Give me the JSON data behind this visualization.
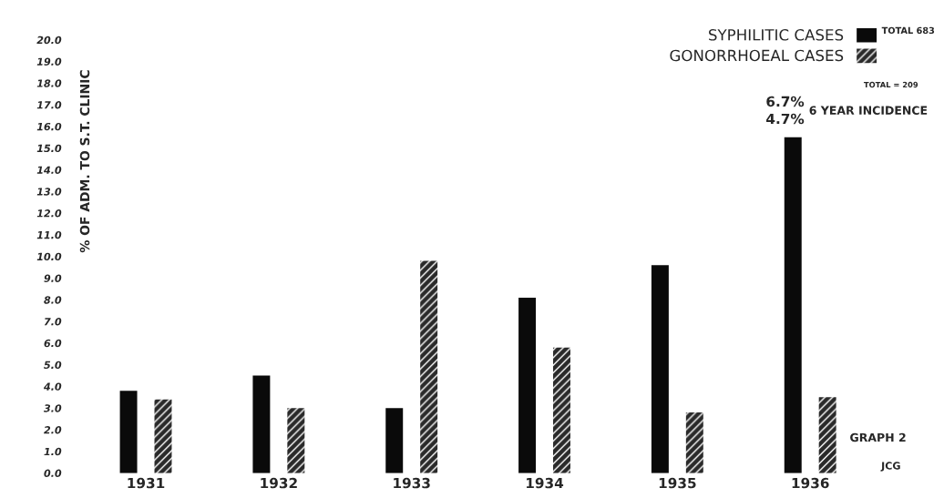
{
  "chart_data": {
    "type": "bar",
    "ylabel": "% OF ADM. TO S.T. CLINIC",
    "categories": [
      "1931",
      "1932",
      "1933",
      "1934",
      "1935",
      "1936"
    ],
    "series": [
      {
        "name": "SYPHILITIC CASES",
        "color": "#0a0a0a",
        "values": [
          3.8,
          4.5,
          3.0,
          8.1,
          9.6,
          15.5
        ]
      },
      {
        "name": "GONORRHOEAL CASES",
        "color": "#2a2a2a",
        "values": [
          3.4,
          3.0,
          9.8,
          5.8,
          2.8,
          3.5
        ]
      }
    ],
    "ylim": [
      0,
      20
    ],
    "yticks": [
      {
        "value": 0,
        "label": "0.0"
      },
      {
        "value": 1,
        "label": "1.0"
      },
      {
        "value": 2,
        "label": "2.0"
      },
      {
        "value": 3,
        "label": "3.0"
      },
      {
        "value": 4,
        "label": "4.0"
      },
      {
        "value": 5,
        "label": "5.0"
      },
      {
        "value": 6,
        "label": "6.0"
      },
      {
        "value": 7,
        "label": "7.0"
      },
      {
        "value": 8,
        "label": "8.0"
      },
      {
        "value": 9,
        "label": "9.0"
      },
      {
        "value": 10,
        "label": "10.0"
      },
      {
        "value": 11,
        "label": "11.0"
      },
      {
        "value": 12,
        "label": "12.0"
      },
      {
        "value": 13,
        "label": "13.0"
      },
      {
        "value": 14,
        "label": "14.0"
      },
      {
        "value": 15,
        "label": "15.0"
      },
      {
        "value": 16,
        "label": "16.0"
      },
      {
        "value": 17,
        "label": "17.0"
      },
      {
        "value": 18,
        "label": "18.0"
      },
      {
        "value": 19,
        "label": "19.0"
      },
      {
        "value": 20,
        "label": "20.0"
      }
    ],
    "grid": false,
    "legend": "top right",
    "annotations": [
      "TOTAL 683",
      "TOTAL = 209",
      "6.7%",
      "4.7%",
      "6 YEAR INCIDENCE",
      "GRAPH 2",
      "JCG"
    ]
  }
}
